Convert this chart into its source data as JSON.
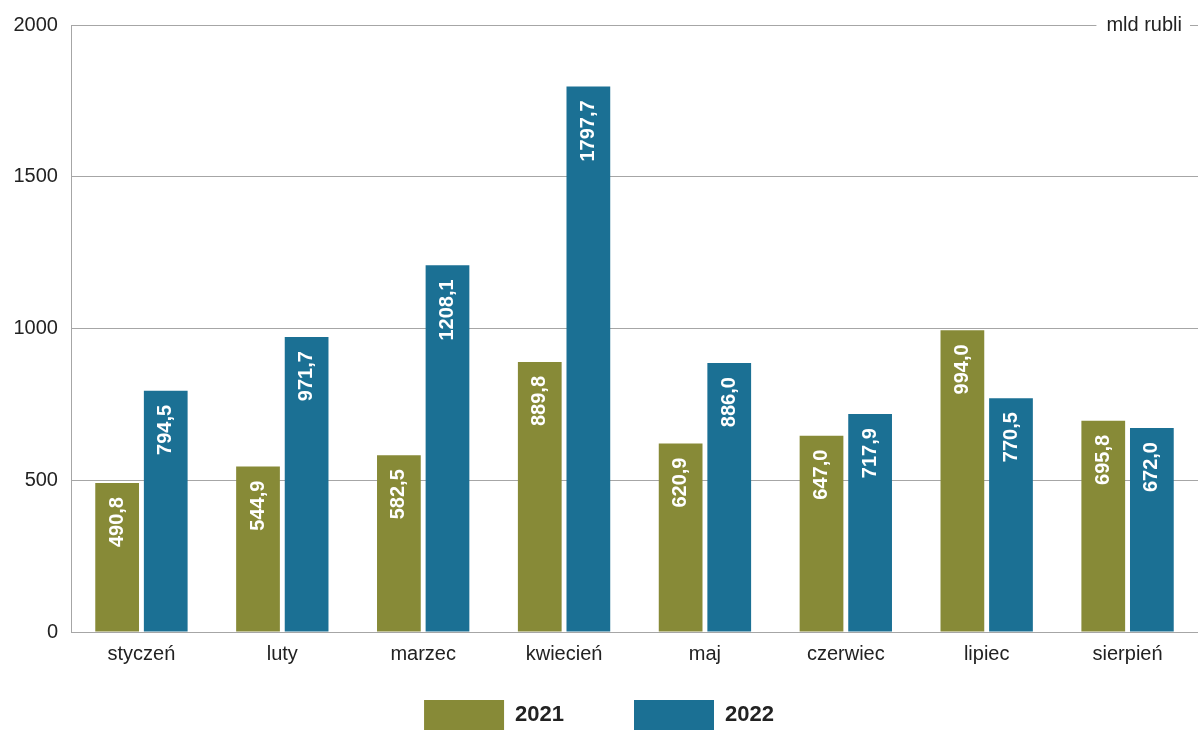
{
  "chart_data": {
    "type": "bar",
    "ylabel": "mld rubli",
    "categories": [
      "styczeń",
      "luty",
      "marzec",
      "kwiecień",
      "maj",
      "czerwiec",
      "lipiec",
      "sierpień"
    ],
    "series": [
      {
        "name": "2021",
        "color": "#878a37",
        "values": [
          490.8,
          544.9,
          582.5,
          889.8,
          620.9,
          647.0,
          994.0,
          695.8
        ],
        "value_labels": [
          "490,8",
          "544,9",
          "582,5",
          "889,8",
          "620,9",
          "647,0",
          "994,0",
          "695,8"
        ]
      },
      {
        "name": "2022",
        "color": "#1b7094",
        "values": [
          794.5,
          971.7,
          1208.1,
          1797.7,
          886.0,
          717.9,
          770.5,
          672.0
        ],
        "value_labels": [
          "794,5",
          "971,7",
          "1208,1",
          "1797,7",
          "886,0",
          "717,9",
          "770,5",
          "672,0"
        ]
      }
    ],
    "ylim": [
      0,
      2000
    ],
    "yticks": [
      0,
      500,
      1000,
      1500,
      2000
    ],
    "grid": "y",
    "legend": "bottom"
  }
}
